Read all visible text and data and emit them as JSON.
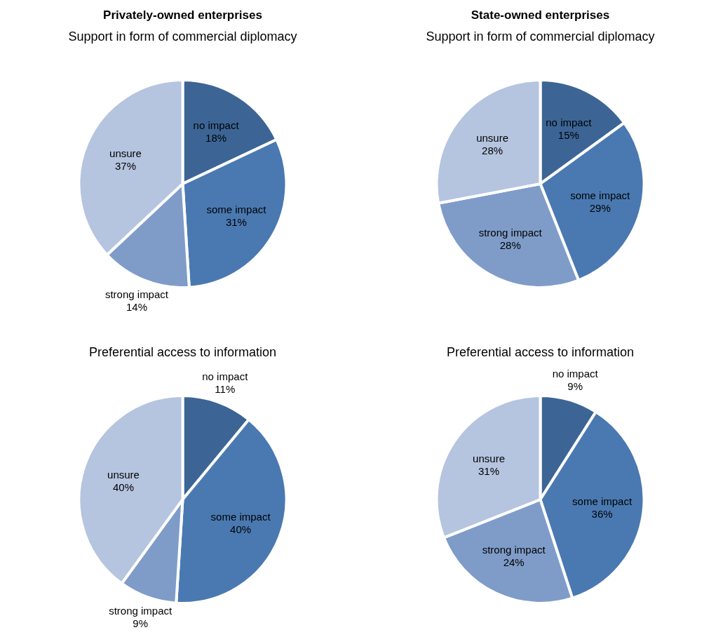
{
  "chart_data": [
    {
      "type": "pie",
      "title": "Privately-owned enterprises",
      "subtitle": "Support in form of commercial diplomacy",
      "categories": [
        "no impact",
        "some impact",
        "strong impact",
        "unsure"
      ],
      "values": [
        18,
        31,
        14,
        37
      ],
      "value_labels": [
        "18%",
        "31%",
        "14%",
        "37%"
      ],
      "colors": [
        "#3c6595",
        "#4a79b1",
        "#7f9cc9",
        "#b5c4df"
      ],
      "legend": false
    },
    {
      "type": "pie",
      "title": "State-owned enterprises",
      "subtitle": "Support in form of commercial diplomacy",
      "categories": [
        "no impact",
        "some impact",
        "strong impact",
        "unsure"
      ],
      "values": [
        15,
        29,
        28,
        28
      ],
      "value_labels": [
        "15%",
        "29%",
        "28%",
        "28%"
      ],
      "colors": [
        "#3c6595",
        "#4a79b1",
        "#7f9cc9",
        "#b5c4df"
      ],
      "legend": false
    },
    {
      "type": "pie",
      "subtitle": "Preferential access to information",
      "categories": [
        "no impact",
        "some impact",
        "strong impact",
        "unsure"
      ],
      "values": [
        11,
        40,
        9,
        40
      ],
      "value_labels": [
        "11%",
        "40%",
        "9%",
        "40%"
      ],
      "colors": [
        "#3c6595",
        "#4a79b1",
        "#7f9cc9",
        "#b5c4df"
      ],
      "legend": false
    },
    {
      "type": "pie",
      "subtitle": "Preferential access to information",
      "categories": [
        "no impact",
        "some impact",
        "strong impact",
        "unsure"
      ],
      "values": [
        9,
        36,
        24,
        31
      ],
      "value_labels": [
        "9%",
        "36%",
        "24%",
        "31%"
      ],
      "colors": [
        "#3c6595",
        "#4a79b1",
        "#7f9cc9",
        "#b5c4df"
      ],
      "legend": false
    }
  ]
}
